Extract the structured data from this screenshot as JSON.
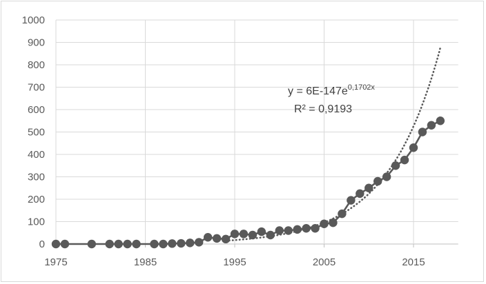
{
  "chart_data": {
    "type": "scatter",
    "title": "",
    "xlabel": "",
    "ylabel": "",
    "xlim": [
      1975,
      2020
    ],
    "ylim": [
      0,
      1000
    ],
    "x_ticks": [
      "1975",
      "1985",
      "1995",
      "2005",
      "2015"
    ],
    "y_ticks": [
      "0",
      "100",
      "200",
      "300",
      "400",
      "500",
      "600",
      "700",
      "800",
      "900",
      "1000"
    ],
    "grid": true,
    "series": [
      {
        "style": "line-with-markers",
        "color": "#595959",
        "x": [
          1975,
          1976,
          1979,
          1981,
          1982,
          1983,
          1984,
          1986,
          1987,
          1988,
          1989,
          1990,
          1991,
          1992,
          1993,
          1994,
          1995,
          1996,
          1997,
          1998,
          1999,
          2000,
          2001,
          2002,
          2003,
          2004,
          2005,
          2006,
          2007,
          2008,
          2009,
          2010,
          2011,
          2012,
          2013,
          2014,
          2015,
          2016,
          2017,
          2018
        ],
        "y": [
          0,
          0,
          0,
          0,
          0,
          0,
          0,
          0,
          0,
          2,
          3,
          5,
          8,
          30,
          25,
          22,
          45,
          45,
          40,
          55,
          40,
          60,
          60,
          65,
          70,
          70,
          90,
          95,
          135,
          195,
          225,
          250,
          280,
          300,
          350,
          375,
          430,
          500,
          530,
          550
        ]
      }
    ],
    "trendline": {
      "type": "exponential",
      "style": "dotted",
      "color": "#595959",
      "a": 6e-147,
      "b": 0.1702,
      "x_start": 1994,
      "x_end": 2018,
      "equation_main": "y = 6E-147e",
      "equation_exponent": "0,1702x",
      "r_squared_label": "R² = 0,9193"
    }
  }
}
